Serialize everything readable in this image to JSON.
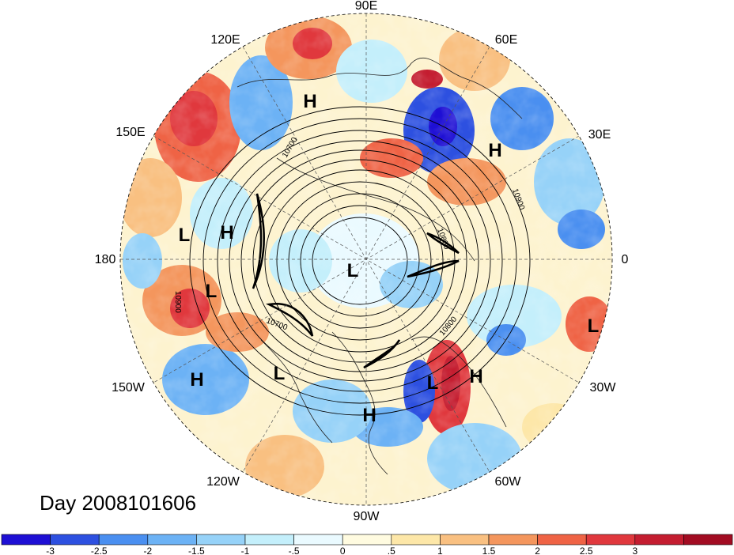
{
  "title": "Day 2008101606",
  "longitude_labels": {
    "lon_90e": "90E",
    "lon_60e": "60E",
    "lon_30e": "30E",
    "lon_0": "0",
    "lon_30w": "30W",
    "lon_60w": "60W",
    "lon_90w": "90W",
    "lon_120w": "120W",
    "lon_150w": "150W",
    "lon_180": "180",
    "lon_150e": "150E",
    "lon_120e": "120E"
  },
  "pressure_centers": [
    {
      "type": "H",
      "desc": "east-siberia"
    },
    {
      "type": "H",
      "desc": "scandinavia"
    },
    {
      "type": "H",
      "desc": "north-pacific-west"
    },
    {
      "type": "L",
      "desc": "north-pacific-west"
    },
    {
      "type": "L",
      "desc": "bering"
    },
    {
      "type": "L",
      "desc": "arctic"
    },
    {
      "type": "L",
      "desc": "gulf-of-alaska"
    },
    {
      "type": "H",
      "desc": "north-pacific-east"
    },
    {
      "type": "H",
      "desc": "us-south"
    },
    {
      "type": "L",
      "desc": "western-atlantic"
    },
    {
      "type": "H",
      "desc": "central-atlantic"
    },
    {
      "type": "L",
      "desc": "eastern-atlantic"
    }
  ],
  "contour_labels": [
    "10700",
    "10900",
    "10900",
    "10800",
    "10700",
    "10800"
  ],
  "colorbar": {
    "colors": [
      "#1e0fd4",
      "#2d50e0",
      "#4a8ff0",
      "#6cb2f5",
      "#96d2f8",
      "#c4effb",
      "#eafaff",
      "#fffbe0",
      "#fde7a8",
      "#f9c081",
      "#f4965d",
      "#ef6345",
      "#e0383d",
      "#c41d30",
      "#a20c22"
    ],
    "ticks": [
      "-3",
      "-2.5",
      "-2",
      "-1.5",
      "-1",
      "-.5",
      "0",
      ".5",
      "1",
      "1.5",
      "2",
      "2.5",
      "3"
    ]
  }
}
